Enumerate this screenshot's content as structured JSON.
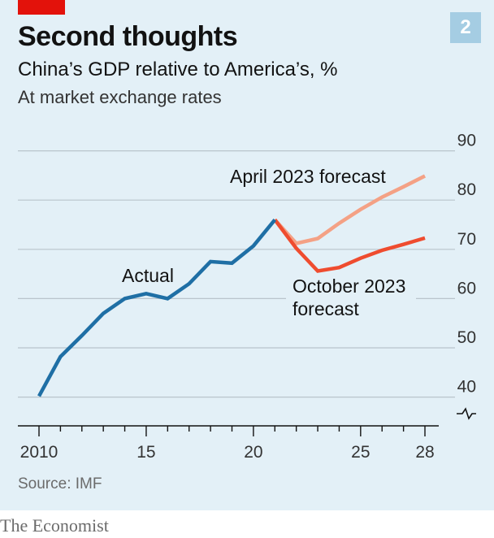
{
  "header": {
    "chart_number": "2",
    "title": "Second thoughts",
    "subtitle": "China’s GDP relative to America’s, %",
    "subtitle2": "At market exchange rates"
  },
  "footer": {
    "source": "Source: IMF",
    "brand": "The Economist"
  },
  "colors": {
    "background": "#e3f0f7",
    "actual": "#1f6fa5",
    "april": "#f4a185",
    "october": "#ef4c2f",
    "brand_red": "#e3120b",
    "gridline": "#b9c4cc"
  },
  "chart_data": {
    "type": "line",
    "title": "Second thoughts",
    "subtitle": "China’s GDP relative to America’s, %",
    "note": "At market exchange rates",
    "xlabel": "",
    "ylabel": "",
    "xlim": [
      2010,
      2028
    ],
    "ylim": [
      34,
      90
    ],
    "axis_break": true,
    "grid": true,
    "x_ticks": [
      2010,
      2015,
      2020,
      2025,
      2028
    ],
    "x_tick_labels": [
      "2010",
      "15",
      "20",
      "25",
      "28"
    ],
    "y_ticks": [
      40,
      50,
      60,
      70,
      80,
      90
    ],
    "y_tick_labels": [
      "40",
      "50",
      "60",
      "70",
      "80",
      "90"
    ],
    "series": [
      {
        "name": "Actual",
        "x": [
          2010,
          2011,
          2012,
          2013,
          2014,
          2015,
          2016,
          2017,
          2018,
          2019,
          2020,
          2021
        ],
        "values": [
          40.2,
          48.2,
          52.5,
          57.0,
          60.0,
          61.0,
          60.0,
          63.0,
          67.5,
          67.2,
          70.7,
          76.0
        ]
      },
      {
        "name": "April 2023 forecast",
        "x": [
          2021,
          2022,
          2023,
          2024,
          2025,
          2026,
          2027,
          2028
        ],
        "values": [
          76.0,
          71.2,
          72.2,
          75.3,
          78.1,
          80.6,
          82.7,
          84.9
        ]
      },
      {
        "name": "October 2023 forecast",
        "x": [
          2021,
          2022,
          2023,
          2024,
          2025,
          2026,
          2027,
          2028
        ],
        "values": [
          76.0,
          70.2,
          65.6,
          66.3,
          68.2,
          69.8,
          71.0,
          72.3
        ]
      }
    ],
    "annotations": [
      {
        "series": "Actual",
        "text": "Actual"
      },
      {
        "series": "April 2023 forecast",
        "text": "April 2023 forecast"
      },
      {
        "series": "October 2023 forecast",
        "lines": [
          "October 2023",
          "forecast"
        ]
      }
    ]
  }
}
